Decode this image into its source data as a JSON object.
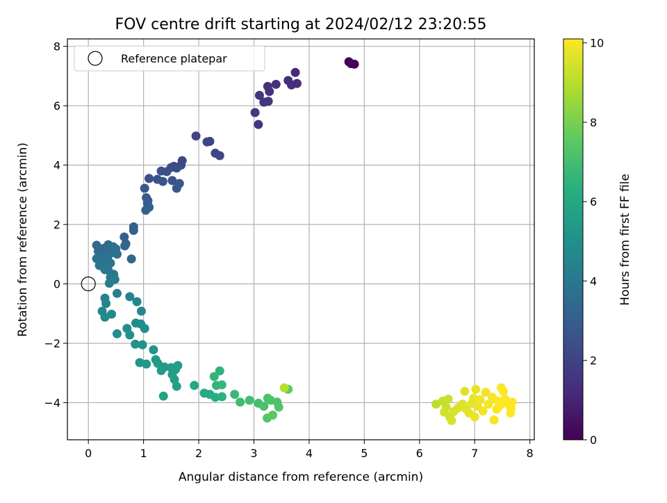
{
  "chart_data": {
    "type": "scatter",
    "title": "FOV centre drift starting at 2024/02/12 23:20:55",
    "xlabel": "Angular distance from reference (arcmin)",
    "ylabel": "Rotation from reference (arcmin)",
    "xlim": [
      -0.38,
      8.08
    ],
    "ylim": [
      -5.25,
      8.25
    ],
    "xticks": [
      0,
      1,
      2,
      3,
      4,
      5,
      6,
      7,
      8
    ],
    "yticks": [
      -4,
      -2,
      0,
      2,
      4,
      6,
      8
    ],
    "grid": true,
    "legend": {
      "position": "top-left",
      "entries": [
        "Reference platepar"
      ]
    },
    "reference_point": {
      "x": 0,
      "y": 0,
      "name": "Reference platepar"
    },
    "colorbar": {
      "label": "Hours from first FF file",
      "colormap": "viridis",
      "range": [
        0,
        10.1
      ],
      "ticks": [
        0,
        2,
        4,
        6,
        8,
        10
      ]
    },
    "points": [
      {
        "x": 4.72,
        "y": 7.48,
        "h": 0.0
      },
      {
        "x": 4.76,
        "y": 7.42,
        "h": 0.05
      },
      {
        "x": 4.82,
        "y": 7.4,
        "h": 0.1
      },
      {
        "x": 3.75,
        "y": 7.12,
        "h": 1.2
      },
      {
        "x": 3.78,
        "y": 6.75,
        "h": 1.25
      },
      {
        "x": 3.62,
        "y": 6.85,
        "h": 1.3
      },
      {
        "x": 3.68,
        "y": 6.7,
        "h": 1.3
      },
      {
        "x": 3.4,
        "y": 6.72,
        "h": 1.35
      },
      {
        "x": 3.25,
        "y": 6.65,
        "h": 1.4
      },
      {
        "x": 3.28,
        "y": 6.48,
        "h": 1.45
      },
      {
        "x": 3.1,
        "y": 6.35,
        "h": 1.5
      },
      {
        "x": 3.18,
        "y": 6.12,
        "h": 1.5
      },
      {
        "x": 3.26,
        "y": 6.15,
        "h": 1.55
      },
      {
        "x": 3.02,
        "y": 5.77,
        "h": 1.6
      },
      {
        "x": 3.08,
        "y": 5.37,
        "h": 1.65
      },
      {
        "x": 1.95,
        "y": 4.98,
        "h": 2.0
      },
      {
        "x": 2.15,
        "y": 4.78,
        "h": 2.05
      },
      {
        "x": 2.2,
        "y": 4.8,
        "h": 2.05
      },
      {
        "x": 2.3,
        "y": 4.4,
        "h": 2.1
      },
      {
        "x": 2.38,
        "y": 4.32,
        "h": 2.15
      },
      {
        "x": 1.7,
        "y": 4.15,
        "h": 2.2
      },
      {
        "x": 1.68,
        "y": 4.0,
        "h": 2.25
      },
      {
        "x": 1.55,
        "y": 3.96,
        "h": 2.3
      },
      {
        "x": 1.5,
        "y": 3.92,
        "h": 2.35
      },
      {
        "x": 1.6,
        "y": 3.9,
        "h": 2.4
      },
      {
        "x": 1.32,
        "y": 3.8,
        "h": 2.45
      },
      {
        "x": 1.42,
        "y": 3.78,
        "h": 2.5
      },
      {
        "x": 1.1,
        "y": 3.55,
        "h": 2.5
      },
      {
        "x": 1.25,
        "y": 3.52,
        "h": 2.55
      },
      {
        "x": 1.35,
        "y": 3.45,
        "h": 2.6
      },
      {
        "x": 1.52,
        "y": 3.48,
        "h": 2.65
      },
      {
        "x": 1.65,
        "y": 3.38,
        "h": 2.7
      },
      {
        "x": 1.6,
        "y": 3.22,
        "h": 2.75
      },
      {
        "x": 1.02,
        "y": 3.22,
        "h": 2.8
      },
      {
        "x": 1.05,
        "y": 2.9,
        "h": 2.85
      },
      {
        "x": 1.08,
        "y": 2.8,
        "h": 2.9
      },
      {
        "x": 1.07,
        "y": 2.72,
        "h": 2.95
      },
      {
        "x": 1.1,
        "y": 2.58,
        "h": 3.0
      },
      {
        "x": 1.04,
        "y": 2.48,
        "h": 3.05
      },
      {
        "x": 0.82,
        "y": 1.92,
        "h": 3.1
      },
      {
        "x": 0.82,
        "y": 1.8,
        "h": 3.15
      },
      {
        "x": 0.65,
        "y": 1.58,
        "h": 3.2
      },
      {
        "x": 0.68,
        "y": 1.35,
        "h": 3.25
      },
      {
        "x": 0.66,
        "y": 1.28,
        "h": 3.3
      },
      {
        "x": 0.78,
        "y": 0.84,
        "h": 3.35
      },
      {
        "x": 0.15,
        "y": 1.3,
        "h": 3.4
      },
      {
        "x": 0.36,
        "y": 1.32,
        "h": 3.45
      },
      {
        "x": 0.28,
        "y": 1.2,
        "h": 3.5
      },
      {
        "x": 0.18,
        "y": 1.1,
        "h": 3.5
      },
      {
        "x": 0.22,
        "y": 1.0,
        "h": 3.55
      },
      {
        "x": 0.32,
        "y": 1.05,
        "h": 3.6
      },
      {
        "x": 0.38,
        "y": 1.15,
        "h": 3.6
      },
      {
        "x": 0.45,
        "y": 1.25,
        "h": 3.65
      },
      {
        "x": 0.5,
        "y": 1.18,
        "h": 3.65
      },
      {
        "x": 0.42,
        "y": 1.05,
        "h": 3.7
      },
      {
        "x": 0.52,
        "y": 1.0,
        "h": 3.7
      },
      {
        "x": 0.26,
        "y": 0.92,
        "h": 3.75
      },
      {
        "x": 0.15,
        "y": 0.85,
        "h": 3.75
      },
      {
        "x": 0.24,
        "y": 0.8,
        "h": 3.8
      },
      {
        "x": 0.35,
        "y": 0.88,
        "h": 3.8
      },
      {
        "x": 0.4,
        "y": 0.7,
        "h": 3.85
      },
      {
        "x": 0.3,
        "y": 0.72,
        "h": 3.85
      },
      {
        "x": 0.2,
        "y": 0.62,
        "h": 3.9
      },
      {
        "x": 0.28,
        "y": 0.55,
        "h": 3.9
      },
      {
        "x": 0.36,
        "y": 0.46,
        "h": 3.95
      },
      {
        "x": 0.3,
        "y": 0.48,
        "h": 4.0
      },
      {
        "x": 0.46,
        "y": 0.32,
        "h": 4.05
      },
      {
        "x": 0.4,
        "y": 0.22,
        "h": 4.1
      },
      {
        "x": 0.48,
        "y": 0.15,
        "h": 4.15
      },
      {
        "x": 0.38,
        "y": 0.02,
        "h": 4.2
      },
      {
        "x": 0.52,
        "y": -0.32,
        "h": 4.3
      },
      {
        "x": 0.3,
        "y": -0.48,
        "h": 4.4
      },
      {
        "x": 0.32,
        "y": -0.66,
        "h": 4.45
      },
      {
        "x": 0.75,
        "y": -0.43,
        "h": 4.5
      },
      {
        "x": 0.88,
        "y": -0.6,
        "h": 4.55
      },
      {
        "x": 0.96,
        "y": -0.92,
        "h": 4.6
      },
      {
        "x": 0.25,
        "y": -0.92,
        "h": 4.65
      },
      {
        "x": 0.42,
        "y": -1.02,
        "h": 4.7
      },
      {
        "x": 0.3,
        "y": -1.12,
        "h": 4.75
      },
      {
        "x": 0.86,
        "y": -1.32,
        "h": 4.8
      },
      {
        "x": 0.95,
        "y": -1.35,
        "h": 4.85
      },
      {
        "x": 1.02,
        "y": -1.5,
        "h": 4.9
      },
      {
        "x": 0.7,
        "y": -1.5,
        "h": 4.95
      },
      {
        "x": 0.52,
        "y": -1.68,
        "h": 5.0
      },
      {
        "x": 0.75,
        "y": -1.72,
        "h": 5.05
      },
      {
        "x": 0.85,
        "y": -2.03,
        "h": 5.1
      },
      {
        "x": 0.98,
        "y": -2.05,
        "h": 5.15
      },
      {
        "x": 1.18,
        "y": -2.22,
        "h": 5.2
      },
      {
        "x": 0.93,
        "y": -2.65,
        "h": 5.25
      },
      {
        "x": 1.05,
        "y": -2.7,
        "h": 5.3
      },
      {
        "x": 1.22,
        "y": -2.55,
        "h": 5.35
      },
      {
        "x": 1.26,
        "y": -2.68,
        "h": 5.4
      },
      {
        "x": 1.38,
        "y": -2.8,
        "h": 5.45
      },
      {
        "x": 1.32,
        "y": -2.92,
        "h": 5.5
      },
      {
        "x": 1.5,
        "y": -2.82,
        "h": 5.5
      },
      {
        "x": 1.62,
        "y": -2.75,
        "h": 5.55
      },
      {
        "x": 1.58,
        "y": -2.88,
        "h": 5.6
      },
      {
        "x": 1.52,
        "y": -3.05,
        "h": 5.6
      },
      {
        "x": 1.56,
        "y": -3.22,
        "h": 5.65
      },
      {
        "x": 1.6,
        "y": -3.45,
        "h": 5.7
      },
      {
        "x": 1.36,
        "y": -3.78,
        "h": 5.75
      },
      {
        "x": 1.92,
        "y": -3.42,
        "h": 6.0
      },
      {
        "x": 2.1,
        "y": -3.68,
        "h": 6.1
      },
      {
        "x": 2.2,
        "y": -3.72,
        "h": 6.2
      },
      {
        "x": 2.3,
        "y": -3.82,
        "h": 6.3
      },
      {
        "x": 2.42,
        "y": -3.8,
        "h": 6.4
      },
      {
        "x": 2.38,
        "y": -2.93,
        "h": 6.5
      },
      {
        "x": 2.28,
        "y": -3.12,
        "h": 6.6
      },
      {
        "x": 2.32,
        "y": -3.42,
        "h": 6.6
      },
      {
        "x": 2.42,
        "y": -3.4,
        "h": 6.7
      },
      {
        "x": 2.65,
        "y": -3.72,
        "h": 6.8
      },
      {
        "x": 2.75,
        "y": -3.98,
        "h": 6.9
      },
      {
        "x": 2.92,
        "y": -3.92,
        "h": 7.0
      },
      {
        "x": 3.08,
        "y": -4.02,
        "h": 7.0
      },
      {
        "x": 3.18,
        "y": -4.12,
        "h": 7.1
      },
      {
        "x": 3.25,
        "y": -3.85,
        "h": 7.1
      },
      {
        "x": 3.3,
        "y": -3.92,
        "h": 7.2
      },
      {
        "x": 3.42,
        "y": -3.98,
        "h": 7.2
      },
      {
        "x": 3.45,
        "y": -4.15,
        "h": 7.3
      },
      {
        "x": 3.24,
        "y": -4.52,
        "h": 7.4
      },
      {
        "x": 3.34,
        "y": -4.42,
        "h": 7.5
      },
      {
        "x": 3.62,
        "y": -3.55,
        "h": 7.6
      },
      {
        "x": 3.55,
        "y": -3.5,
        "h": 9.0
      },
      {
        "x": 6.3,
        "y": -4.05,
        "h": 9.1
      },
      {
        "x": 6.42,
        "y": -3.95,
        "h": 9.2
      },
      {
        "x": 6.48,
        "y": -4.15,
        "h": 9.3
      },
      {
        "x": 6.52,
        "y": -3.88,
        "h": 9.3
      },
      {
        "x": 6.45,
        "y": -4.32,
        "h": 9.4
      },
      {
        "x": 6.55,
        "y": -4.48,
        "h": 9.4
      },
      {
        "x": 6.58,
        "y": -4.6,
        "h": 9.5
      },
      {
        "x": 6.62,
        "y": -4.3,
        "h": 9.5
      },
      {
        "x": 6.7,
        "y": -4.18,
        "h": 9.5
      },
      {
        "x": 6.78,
        "y": -4.05,
        "h": 9.6
      },
      {
        "x": 6.82,
        "y": -3.62,
        "h": 9.6
      },
      {
        "x": 6.85,
        "y": -4.22,
        "h": 9.6
      },
      {
        "x": 6.9,
        "y": -4.35,
        "h": 9.7
      },
      {
        "x": 6.95,
        "y": -4.02,
        "h": 9.7
      },
      {
        "x": 6.98,
        "y": -3.85,
        "h": 9.7
      },
      {
        "x": 7.02,
        "y": -3.55,
        "h": 9.8
      },
      {
        "x": 7.0,
        "y": -4.48,
        "h": 9.8
      },
      {
        "x": 7.05,
        "y": -4.12,
        "h": 9.8
      },
      {
        "x": 7.1,
        "y": -3.9,
        "h": 9.9
      },
      {
        "x": 7.15,
        "y": -4.28,
        "h": 9.9
      },
      {
        "x": 7.2,
        "y": -3.65,
        "h": 9.9
      },
      {
        "x": 7.25,
        "y": -4.05,
        "h": 10.0
      },
      {
        "x": 7.32,
        "y": -3.82,
        "h": 10.0
      },
      {
        "x": 7.35,
        "y": -4.58,
        "h": 10.0
      },
      {
        "x": 7.4,
        "y": -4.22,
        "h": 10.0
      },
      {
        "x": 7.42,
        "y": -3.95,
        "h": 10.05
      },
      {
        "x": 7.45,
        "y": -4.1,
        "h": 10.05
      },
      {
        "x": 7.48,
        "y": -3.5,
        "h": 10.05
      },
      {
        "x": 7.52,
        "y": -3.62,
        "h": 10.1
      },
      {
        "x": 7.55,
        "y": -3.88,
        "h": 10.1
      },
      {
        "x": 7.6,
        "y": -4.05,
        "h": 10.1
      },
      {
        "x": 7.65,
        "y": -4.35,
        "h": 10.1
      },
      {
        "x": 7.68,
        "y": -3.98,
        "h": 10.1
      },
      {
        "x": 7.66,
        "y": -4.18,
        "h": 10.1
      }
    ]
  }
}
